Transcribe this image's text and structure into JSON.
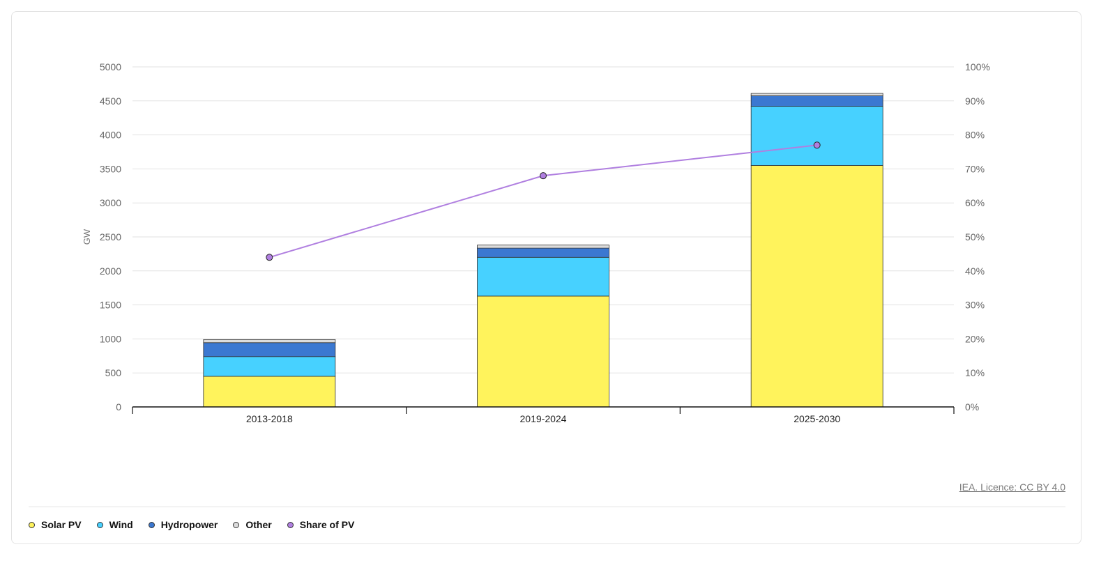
{
  "chart_data": {
    "type": "bar",
    "stacked": true,
    "categories": [
      "2013-2018",
      "2019-2024",
      "2025-2030"
    ],
    "series": [
      {
        "name": "Solar PV",
        "color": "#fff35c",
        "values": [
          450,
          1630,
          3550
        ]
      },
      {
        "name": "Wind",
        "color": "#47d1ff",
        "values": [
          290,
          570,
          870
        ]
      },
      {
        "name": "Hydropower",
        "color": "#3b78d1",
        "values": [
          205,
          135,
          155
        ]
      },
      {
        "name": "Other",
        "color": "#dcdcdc",
        "values": [
          45,
          45,
          35
        ]
      }
    ],
    "line_series": {
      "name": "Share of PV",
      "color": "#b07fe0",
      "axis": "right",
      "values": [
        44,
        68,
        77
      ]
    },
    "ylabel": "GW",
    "ylim": [
      0,
      5000
    ],
    "yticks": [
      "0",
      "500",
      "1000",
      "1500",
      "2000",
      "2500",
      "3000",
      "3500",
      "4000",
      "4500",
      "5000"
    ],
    "y2lim": [
      0,
      100
    ],
    "y2ticks": [
      "0%",
      "10%",
      "20%",
      "30%",
      "40%",
      "50%",
      "60%",
      "70%",
      "80%",
      "90%",
      "100%"
    ],
    "grid": true,
    "legend_position": "bottom-left"
  },
  "credit": {
    "label": "IEA. Licence: CC BY 4.0"
  },
  "legend": {
    "items": [
      {
        "label": "Solar PV",
        "color": "#fff35c"
      },
      {
        "label": "Wind",
        "color": "#47d1ff"
      },
      {
        "label": "Hydropower",
        "color": "#3b78d1"
      },
      {
        "label": "Other",
        "color": "#dcdcdc"
      },
      {
        "label": "Share of PV",
        "color": "#b07fe0"
      }
    ]
  }
}
